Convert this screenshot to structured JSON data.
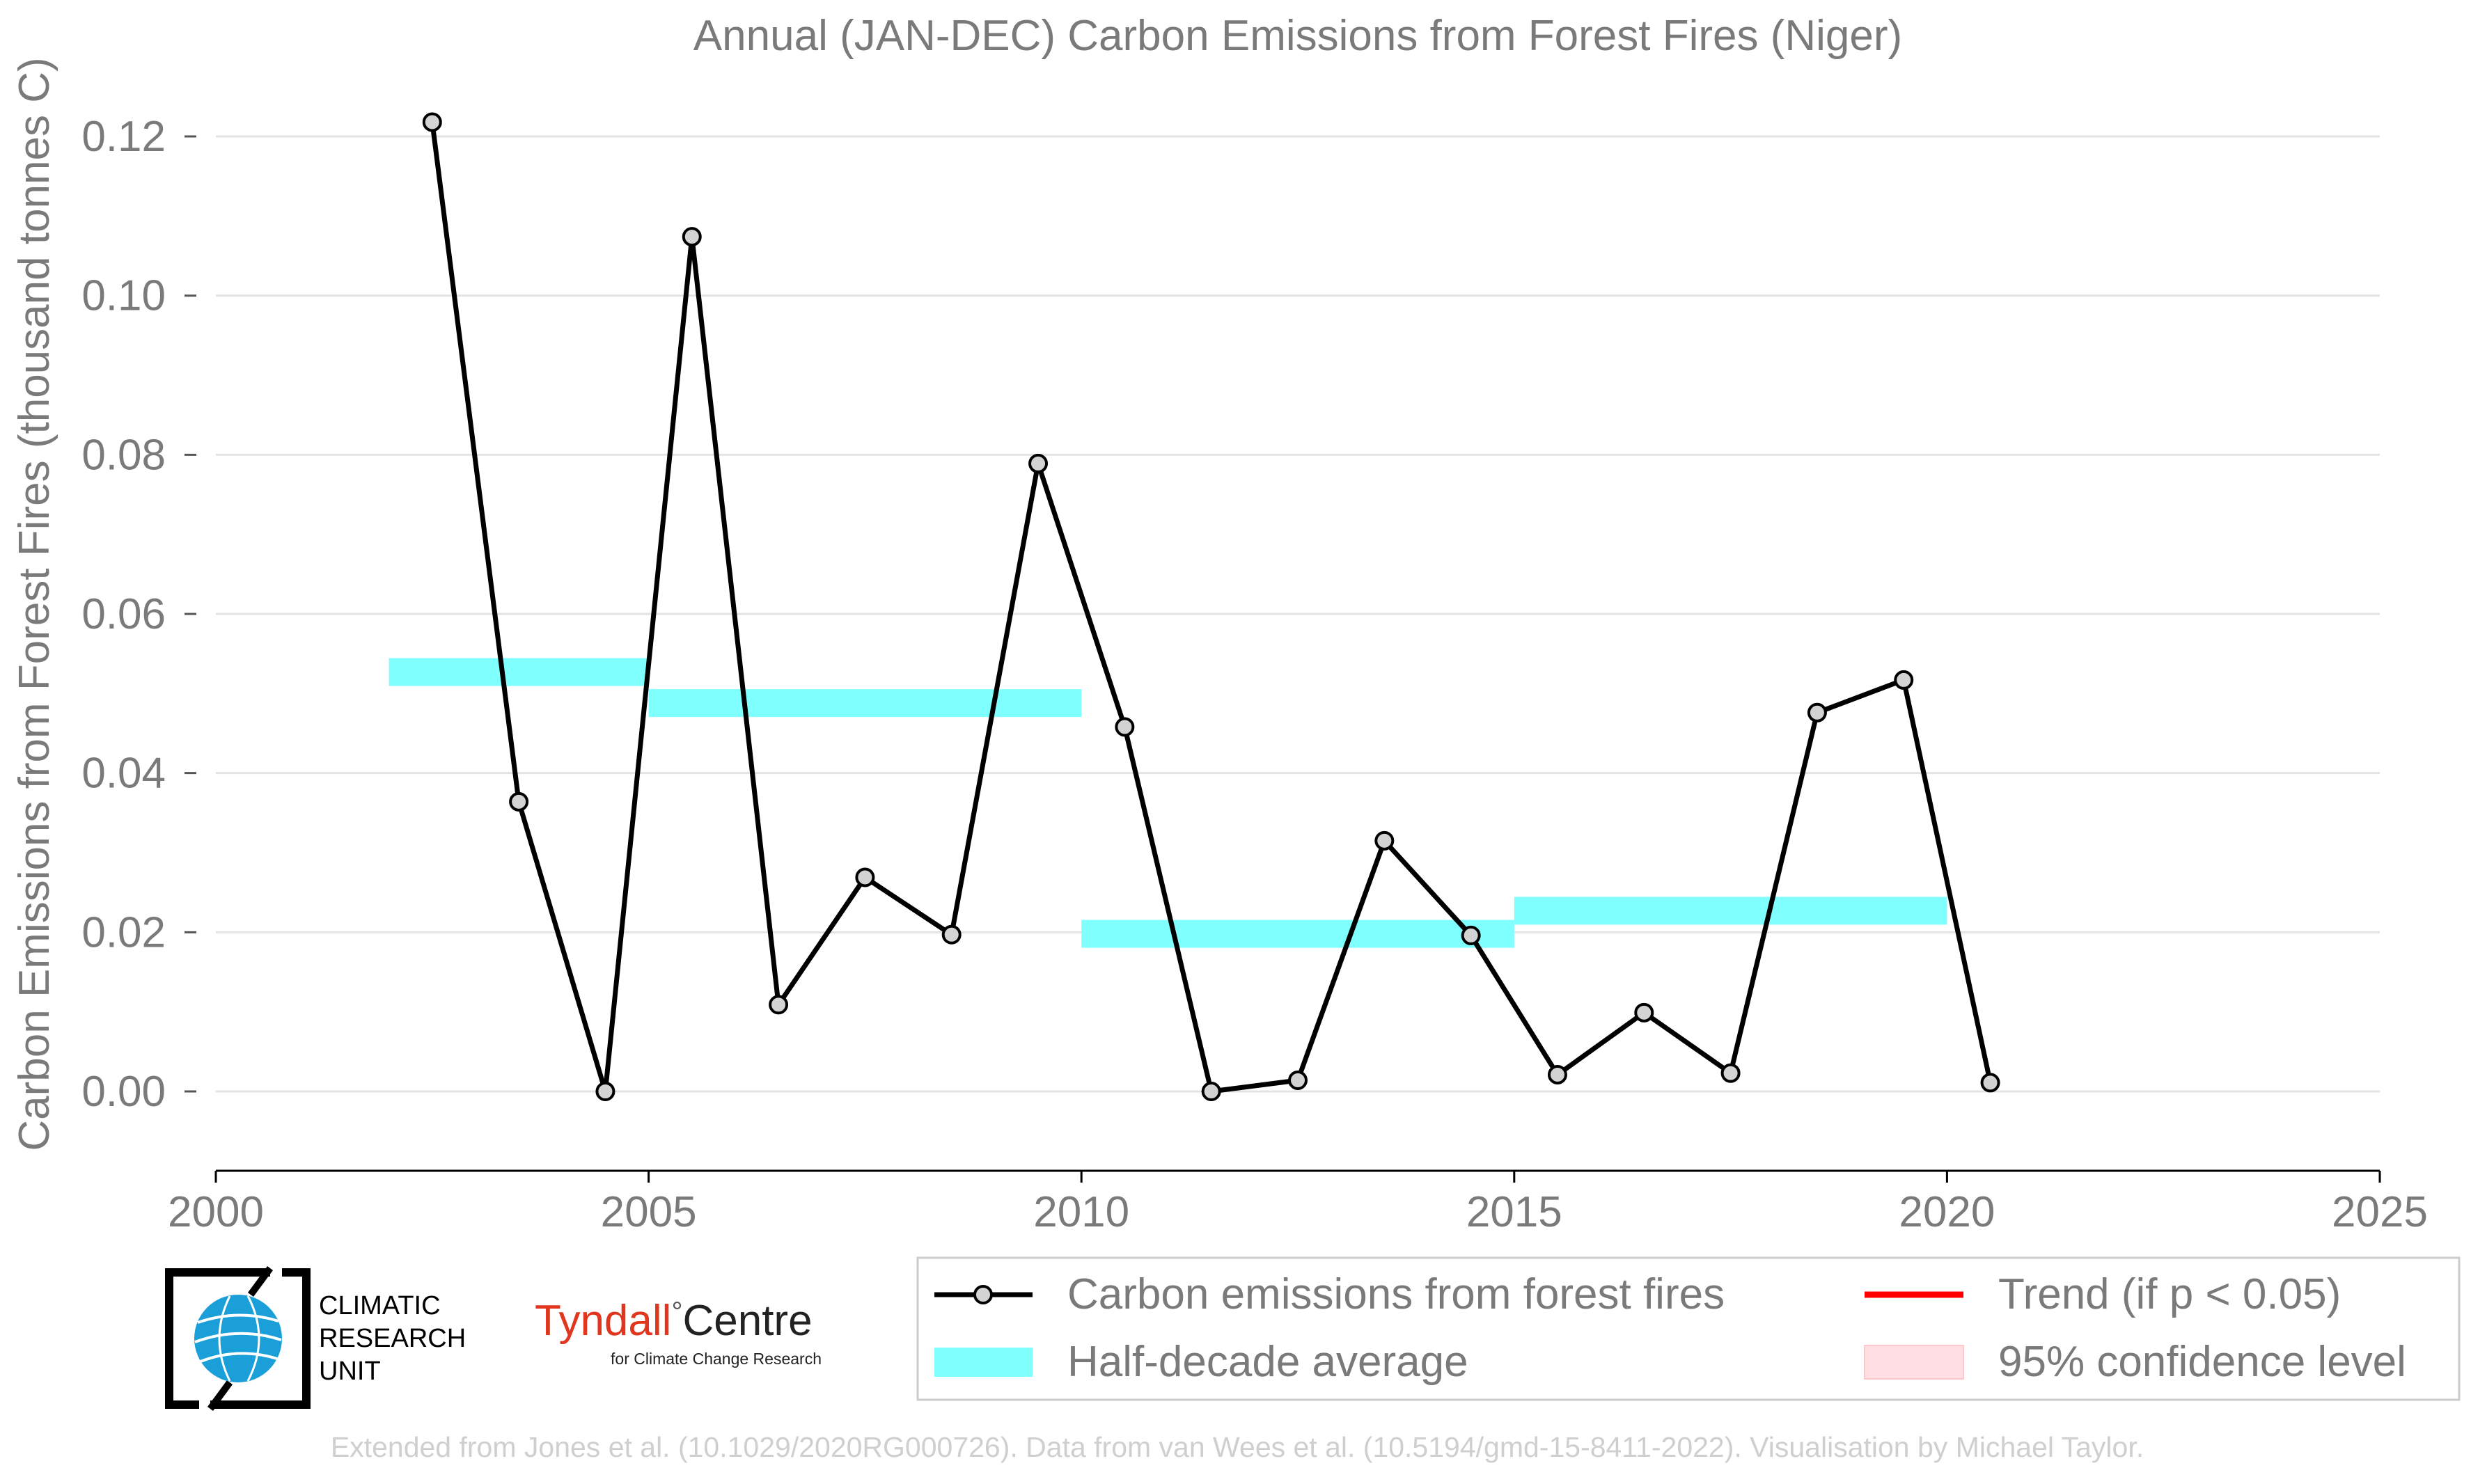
{
  "chart_data": {
    "type": "line",
    "title": "Annual (JAN-DEC) Carbon Emissions from Forest Fires (Niger)",
    "xlabel": "",
    "ylabel": "Carbon Emissions from Forest Fires (thousand tonnes C)",
    "xlim": [
      2000,
      2025
    ],
    "ylim": [
      -0.01,
      0.125
    ],
    "x_ticks": [
      2000,
      2005,
      2010,
      2015,
      2020,
      2025
    ],
    "x_tick_labels": [
      "2000",
      "2005",
      "2010",
      "2015",
      "2020",
      "2025"
    ],
    "y_ticks": [
      0.0,
      0.02,
      0.04,
      0.06,
      0.08,
      0.1,
      0.12
    ],
    "y_tick_labels": [
      "0.00",
      "0.02",
      "0.04",
      "0.06",
      "0.08",
      "0.10",
      "0.12"
    ],
    "grid": true,
    "series": [
      {
        "name": "Carbon emissions from forest fires",
        "color": "#000000",
        "marker_fill": "#d3d3d3",
        "x": [
          2002.5,
          2003.5,
          2004.5,
          2005.5,
          2006.5,
          2007.5,
          2008.5,
          2009.5,
          2010.5,
          2011.5,
          2012.5,
          2013.5,
          2014.5,
          2015.5,
          2016.5,
          2017.5,
          2018.5,
          2019.5,
          2020.5
        ],
        "y": [
          0.1218,
          0.0364,
          0.0,
          0.1074,
          0.0109,
          0.0269,
          0.0197,
          0.0789,
          0.0458,
          0.0,
          0.0014,
          0.0315,
          0.0196,
          0.0021,
          0.0099,
          0.0023,
          0.0476,
          0.0517,
          0.0011
        ]
      }
    ],
    "half_decade_average": {
      "name": "Half-decade average",
      "color": "#80ffff",
      "segments": [
        {
          "x_start": 2002,
          "x_end": 2005,
          "y": 0.0527
        },
        {
          "x_start": 2005,
          "x_end": 2010,
          "y": 0.0488
        },
        {
          "x_start": 2010,
          "x_end": 2015,
          "y": 0.0198
        },
        {
          "x_start": 2015,
          "x_end": 2020,
          "y": 0.0227
        }
      ]
    },
    "legend": {
      "placement": "bottom-right",
      "entries": [
        {
          "label": "Carbon emissions from forest fires",
          "kind": "line-marker",
          "color": "#000000"
        },
        {
          "label": "Trend (if p < 0.05)",
          "kind": "line",
          "color": "#ff0000"
        },
        {
          "label": "Half-decade average",
          "kind": "band",
          "color": "#80ffff"
        },
        {
          "label": "95% confidence level",
          "kind": "band",
          "color": "#ffdfe3"
        }
      ]
    }
  },
  "logos": {
    "cru": {
      "icon": "globe-icon",
      "lines": [
        "CLIMATIC",
        "RESEARCH",
        "UNIT"
      ]
    },
    "tyndall": {
      "name_part1": "Tyndall",
      "degree": "°",
      "name_part2": "Centre",
      "subtitle": "for Climate Change Research"
    }
  },
  "footer": {
    "credit": "Extended from Jones et al. (10.1029/2020RG000726). Data from van Wees et al. (10.5194/gmd-15-8411-2022). Visualisation by Michael Taylor."
  },
  "colors": {
    "text_gray": "#7a7a7a",
    "grid": "#e3e3e3",
    "footer_gray": "#cfcfcf",
    "tyndall_red": "#e2351d",
    "cru_blue": "#1a9fd8"
  }
}
